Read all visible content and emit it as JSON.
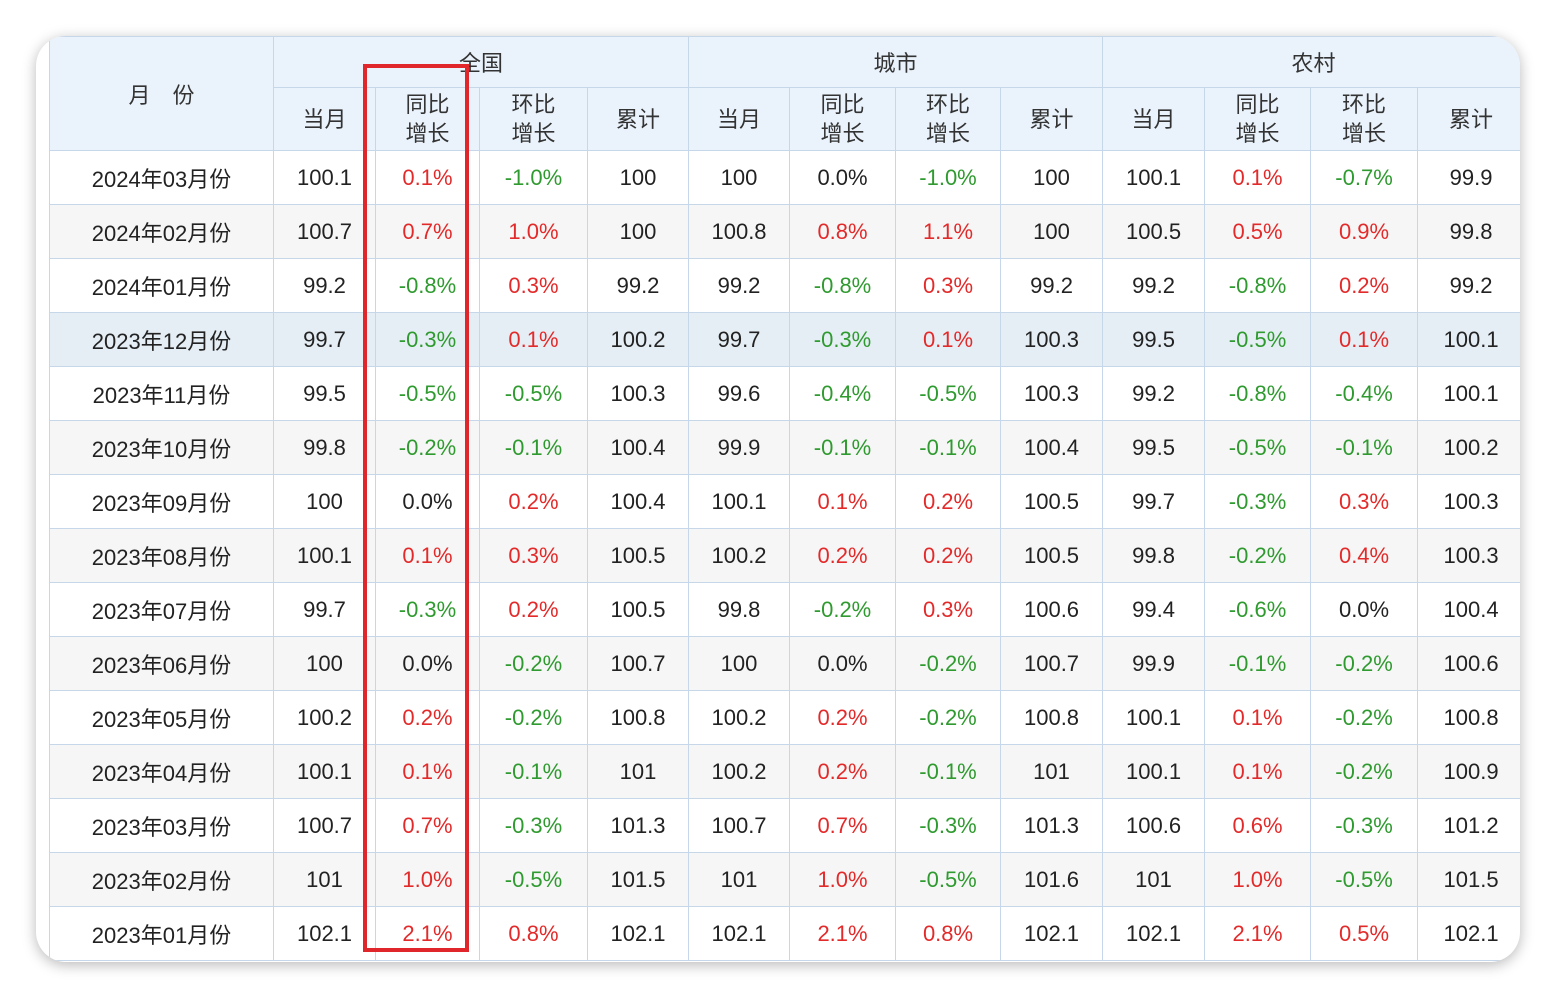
{
  "header": {
    "month_label": "月　份",
    "groups": [
      "全国",
      "城市",
      "农村"
    ],
    "sub_columns": [
      "当月",
      "同比\n增长",
      "环比\n增长",
      "累计"
    ]
  },
  "colors": {
    "increase": "#e32a2a",
    "decrease": "#2f9a2f",
    "highlight_box": "#e0262a"
  },
  "rows": [
    {
      "month": "2024年03月份",
      "cells": [
        "100.1",
        "0.1%",
        "-1.0%",
        "100",
        "100",
        "0.0%",
        "-1.0%",
        "100",
        "100.1",
        "0.1%",
        "-0.7%",
        "99.9"
      ]
    },
    {
      "month": "2024年02月份",
      "cells": [
        "100.7",
        "0.7%",
        "1.0%",
        "100",
        "100.8",
        "0.8%",
        "1.1%",
        "100",
        "100.5",
        "0.5%",
        "0.9%",
        "99.8"
      ]
    },
    {
      "month": "2024年01月份",
      "cells": [
        "99.2",
        "-0.8%",
        "0.3%",
        "99.2",
        "99.2",
        "-0.8%",
        "0.3%",
        "99.2",
        "99.2",
        "-0.8%",
        "0.2%",
        "99.2"
      ]
    },
    {
      "month": "2023年12月份",
      "cells": [
        "99.7",
        "-0.3%",
        "0.1%",
        "100.2",
        "99.7",
        "-0.3%",
        "0.1%",
        "100.3",
        "99.5",
        "-0.5%",
        "0.1%",
        "100.1"
      ]
    },
    {
      "month": "2023年11月份",
      "cells": [
        "99.5",
        "-0.5%",
        "-0.5%",
        "100.3",
        "99.6",
        "-0.4%",
        "-0.5%",
        "100.3",
        "99.2",
        "-0.8%",
        "-0.4%",
        "100.1"
      ]
    },
    {
      "month": "2023年10月份",
      "cells": [
        "99.8",
        "-0.2%",
        "-0.1%",
        "100.4",
        "99.9",
        "-0.1%",
        "-0.1%",
        "100.4",
        "99.5",
        "-0.5%",
        "-0.1%",
        "100.2"
      ]
    },
    {
      "month": "2023年09月份",
      "cells": [
        "100",
        "0.0%",
        "0.2%",
        "100.4",
        "100.1",
        "0.1%",
        "0.2%",
        "100.5",
        "99.7",
        "-0.3%",
        "0.3%",
        "100.3"
      ]
    },
    {
      "month": "2023年08月份",
      "cells": [
        "100.1",
        "0.1%",
        "0.3%",
        "100.5",
        "100.2",
        "0.2%",
        "0.2%",
        "100.5",
        "99.8",
        "-0.2%",
        "0.4%",
        "100.3"
      ]
    },
    {
      "month": "2023年07月份",
      "cells": [
        "99.7",
        "-0.3%",
        "0.2%",
        "100.5",
        "99.8",
        "-0.2%",
        "0.3%",
        "100.6",
        "99.4",
        "-0.6%",
        "0.0%",
        "100.4"
      ]
    },
    {
      "month": "2023年06月份",
      "cells": [
        "100",
        "0.0%",
        "-0.2%",
        "100.7",
        "100",
        "0.0%",
        "-0.2%",
        "100.7",
        "99.9",
        "-0.1%",
        "-0.2%",
        "100.6"
      ]
    },
    {
      "month": "2023年05月份",
      "cells": [
        "100.2",
        "0.2%",
        "-0.2%",
        "100.8",
        "100.2",
        "0.2%",
        "-0.2%",
        "100.8",
        "100.1",
        "0.1%",
        "-0.2%",
        "100.8"
      ]
    },
    {
      "month": "2023年04月份",
      "cells": [
        "100.1",
        "0.1%",
        "-0.1%",
        "101",
        "100.2",
        "0.2%",
        "-0.1%",
        "101",
        "100.1",
        "0.1%",
        "-0.2%",
        "100.9"
      ]
    },
    {
      "month": "2023年03月份",
      "cells": [
        "100.7",
        "0.7%",
        "-0.3%",
        "101.3",
        "100.7",
        "0.7%",
        "-0.3%",
        "101.3",
        "100.6",
        "0.6%",
        "-0.3%",
        "101.2"
      ]
    },
    {
      "month": "2023年02月份",
      "cells": [
        "101",
        "1.0%",
        "-0.5%",
        "101.5",
        "101",
        "1.0%",
        "-0.5%",
        "101.6",
        "101",
        "1.0%",
        "-0.5%",
        "101.5"
      ]
    },
    {
      "month": "2023年01月份",
      "cells": [
        "102.1",
        "2.1%",
        "0.8%",
        "102.1",
        "102.1",
        "2.1%",
        "0.8%",
        "102.1",
        "102.1",
        "2.1%",
        "0.5%",
        "102.1"
      ]
    }
  ],
  "highlighted_row_index": 3
}
